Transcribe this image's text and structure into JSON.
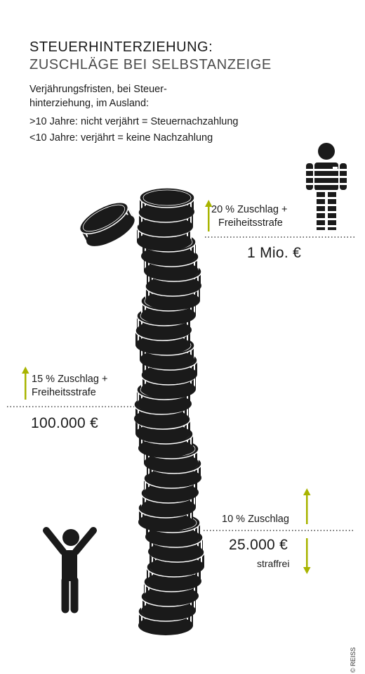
{
  "title": "STEUERHINTERZIEHUNG:",
  "subtitle": "ZUSCHLÄGE BEI SELBSTANZEIGE",
  "intro_line1": "Verjährungsfristen, bei Steuer-",
  "intro_line2": "hinterziehung, im Ausland:",
  "rule_over10": ">10 Jahre: nicht verjährt = Steuernachzahlung",
  "rule_under10": "<10 Jahre: verjährt = keine Nachzahlung",
  "thresholds": [
    {
      "surcharge_line1": "20 % Zuschlag +",
      "surcharge_line2": "Freiheitsstrafe",
      "amount": "1 Mio. €"
    },
    {
      "surcharge_line1": "15 % Zuschlag +",
      "surcharge_line2": "Freiheitsstrafe",
      "amount": "100.000 €"
    },
    {
      "surcharge_line1": "10 % Zuschlag",
      "amount": "25.000 €",
      "below_label": "straffrei"
    }
  ],
  "copyright": "© REISS",
  "colors": {
    "accent": "#a8b400",
    "ink": "#1a1a1a"
  },
  "icons": [
    "coin-stack-icon",
    "prisoner-icon",
    "cheering-person-icon",
    "arrow-up-icon",
    "arrow-down-icon"
  ]
}
